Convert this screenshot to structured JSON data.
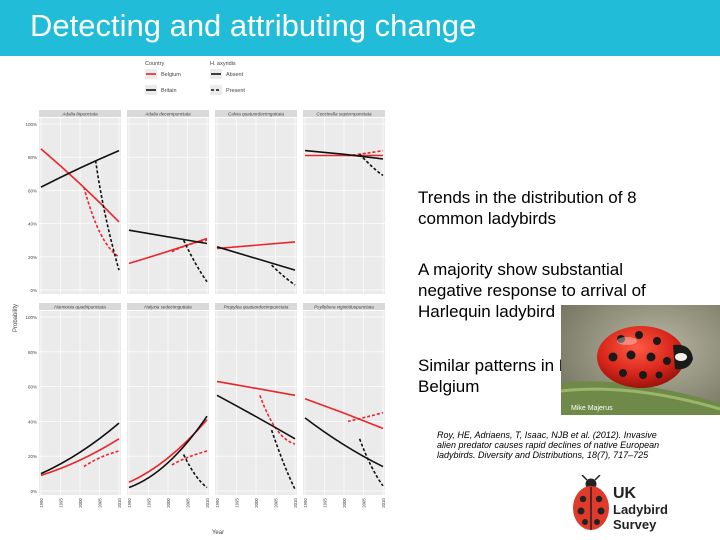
{
  "slide": {
    "title": "Detecting and attributing change",
    "bullets": [
      {
        "lines": [
          "Trends in the distribution of 8",
          "common ladybirds"
        ]
      },
      {
        "lines": [
          "A majority show substantial",
          "negative response to arrival of",
          "Harlequin ladybird"
        ]
      },
      {
        "lines": [
          "Similar patterns in Britain and",
          "Belgium"
        ]
      }
    ],
    "photo_credit": "Mike Majerus",
    "citation": "Roy, HE, Adriaens, T, Isaac, NJB et al. (2012). Invasive alien predator causes rapid declines of native European ladybirds. Diversity and Distributions, 18(7), 717–725",
    "logo": {
      "line1": "UK",
      "line2": "Ladybird Survey"
    }
  },
  "colors": {
    "title_bar": "#20bcd8",
    "belgium": "#e8262b",
    "britain": "#111111",
    "panel_bg": "#ebebeb",
    "grid": "#ffffff"
  },
  "chart_data": {
    "type": "line",
    "legend": {
      "country_title": "Country",
      "harmonia_title": "H. axyridis",
      "entries": [
        "Belgium",
        "Britain",
        "Absent",
        "Present"
      ]
    },
    "ylabel": "Probability",
    "xlabel": "Year",
    "y_ticks": [
      "0%",
      "20%",
      "40%",
      "60%",
      "80%",
      "100%"
    ],
    "x_ticks": [
      "1990",
      "1995",
      "2000",
      "2005",
      "2010"
    ],
    "x_range": [
      1990,
      2010
    ],
    "y_range": [
      0,
      1
    ],
    "panels": [
      {
        "name": "Adalia bipunctata",
        "series": [
          {
            "name": "Belgium Absent",
            "country": "Belgium",
            "status": "Absent",
            "x": [
              1990,
              2000,
              2010
            ],
            "y": [
              0.85,
              0.65,
              0.41
            ]
          },
          {
            "name": "Belgium Present",
            "country": "Belgium",
            "status": "Present",
            "x": [
              2001,
              2005,
              2010
            ],
            "y": [
              0.62,
              0.27,
              0.2
            ]
          },
          {
            "name": "Britain Absent",
            "country": "Britain",
            "status": "Absent",
            "x": [
              1990,
              2000,
              2010
            ],
            "y": [
              0.62,
              0.74,
              0.84
            ]
          },
          {
            "name": "Britain Present",
            "country": "Britain",
            "status": "Present",
            "x": [
              2004,
              2006,
              2010
            ],
            "y": [
              0.78,
              0.45,
              0.12
            ]
          }
        ]
      },
      {
        "name": "Adalia decempunctata",
        "series": [
          {
            "name": "Belgium Absent",
            "country": "Belgium",
            "status": "Absent",
            "x": [
              1990,
              2000,
              2010
            ],
            "y": [
              0.16,
              0.23,
              0.31
            ]
          },
          {
            "name": "Belgium Present",
            "country": "Belgium",
            "status": "Present",
            "x": [
              2001,
              2005,
              2010
            ],
            "y": [
              0.23,
              0.28,
              0.3
            ]
          },
          {
            "name": "Britain Absent",
            "country": "Britain",
            "status": "Absent",
            "x": [
              1990,
              2000,
              2010
            ],
            "y": [
              0.36,
              0.32,
              0.28
            ]
          },
          {
            "name": "Britain Present",
            "country": "Britain",
            "status": "Present",
            "x": [
              2004,
              2007,
              2010
            ],
            "y": [
              0.3,
              0.15,
              0.05
            ]
          }
        ]
      },
      {
        "name": "Calvia quatuordecimguttata",
        "series": [
          {
            "name": "Belgium Absent",
            "country": "Belgium",
            "status": "Absent",
            "x": [
              1990,
              2000,
              2010
            ],
            "y": [
              0.25,
              0.27,
              0.29
            ]
          },
          {
            "name": "Britain Absent",
            "country": "Britain",
            "status": "Absent",
            "x": [
              1990,
              2000,
              2010
            ],
            "y": [
              0.26,
              0.19,
              0.12
            ]
          },
          {
            "name": "Britain Present",
            "country": "Britain",
            "status": "Present",
            "x": [
              2004,
              2007,
              2010
            ],
            "y": [
              0.15,
              0.08,
              0.03
            ]
          }
        ]
      },
      {
        "name": "Coccinella septempunctata",
        "series": [
          {
            "name": "Belgium Absent",
            "country": "Belgium",
            "status": "Absent",
            "x": [
              1990,
              2000,
              2010
            ],
            "y": [
              0.81,
              0.81,
              0.81
            ]
          },
          {
            "name": "Belgium Present",
            "country": "Belgium",
            "status": "Present",
            "x": [
              2001,
              2005,
              2010
            ],
            "y": [
              0.81,
              0.82,
              0.84
            ]
          },
          {
            "name": "Britain Absent",
            "country": "Britain",
            "status": "Absent",
            "x": [
              1990,
              2000,
              2010
            ],
            "y": [
              0.84,
              0.82,
              0.79
            ]
          },
          {
            "name": "Britain Present",
            "country": "Britain",
            "status": "Present",
            "x": [
              2004,
              2007,
              2010
            ],
            "y": [
              0.82,
              0.74,
              0.69
            ]
          }
        ]
      },
      {
        "name": "Harmonia quadripunctata",
        "series": [
          {
            "name": "Belgium Absent",
            "country": "Belgium",
            "status": "Absent",
            "x": [
              1990,
              2000,
              2010
            ],
            "y": [
              0.09,
              0.16,
              0.3
            ]
          },
          {
            "name": "Belgium Present",
            "country": "Belgium",
            "status": "Present",
            "x": [
              2001,
              2005,
              2010
            ],
            "y": [
              0.14,
              0.2,
              0.23
            ]
          },
          {
            "name": "Britain Absent",
            "country": "Britain",
            "status": "Absent",
            "x": [
              1990,
              2000,
              2010
            ],
            "y": [
              0.1,
              0.2,
              0.39
            ]
          }
        ]
      },
      {
        "name": "Halyzia sedecimguttata",
        "series": [
          {
            "name": "Belgium Absent",
            "country": "Belgium",
            "status": "Absent",
            "x": [
              1990,
              2000,
              2010
            ],
            "y": [
              0.05,
              0.15,
              0.41
            ]
          },
          {
            "name": "Belgium Present",
            "country": "Belgium",
            "status": "Present",
            "x": [
              2001,
              2005,
              2010
            ],
            "y": [
              0.15,
              0.2,
              0.23
            ]
          },
          {
            "name": "Britain Absent",
            "country": "Britain",
            "status": "Absent",
            "x": [
              1990,
              2000,
              2010
            ],
            "y": [
              0.02,
              0.1,
              0.43
            ]
          },
          {
            "name": "Britain Present",
            "country": "Britain",
            "status": "Present",
            "x": [
              2004,
              2007,
              2010
            ],
            "y": [
              0.21,
              0.07,
              0.02
            ]
          }
        ]
      },
      {
        "name": "Propylea quatuordecimpunctata",
        "series": [
          {
            "name": "Belgium Absent",
            "country": "Belgium",
            "status": "Absent",
            "x": [
              1990,
              2000,
              2010
            ],
            "y": [
              0.63,
              0.59,
              0.55
            ]
          },
          {
            "name": "Belgium Present",
            "country": "Belgium",
            "status": "Present",
            "x": [
              2001,
              2005,
              2010
            ],
            "y": [
              0.55,
              0.3,
              0.27
            ]
          },
          {
            "name": "Britain Absent",
            "country": "Britain",
            "status": "Absent",
            "x": [
              1990,
              2000,
              2010
            ],
            "y": [
              0.55,
              0.43,
              0.3
            ]
          },
          {
            "name": "Britain Present",
            "country": "Britain",
            "status": "Present",
            "x": [
              2004,
              2007,
              2010
            ],
            "y": [
              0.35,
              0.15,
              0.01
            ]
          }
        ]
      },
      {
        "name": "Psyllobora vigintiduopunctata",
        "series": [
          {
            "name": "Belgium Absent",
            "country": "Belgium",
            "status": "Absent",
            "x": [
              1990,
              2000,
              2010
            ],
            "y": [
              0.53,
              0.45,
              0.36
            ]
          },
          {
            "name": "Belgium Present",
            "country": "Belgium",
            "status": "Present",
            "x": [
              2001,
              2005,
              2010
            ],
            "y": [
              0.4,
              0.42,
              0.45
            ]
          },
          {
            "name": "Britain Absent",
            "country": "Britain",
            "status": "Absent",
            "x": [
              1990,
              2000,
              2010
            ],
            "y": [
              0.42,
              0.25,
              0.14
            ]
          },
          {
            "name": "Britain Present",
            "country": "Britain",
            "status": "Present",
            "x": [
              2004,
              2007,
              2010
            ],
            "y": [
              0.3,
              0.12,
              0.03
            ]
          }
        ]
      }
    ]
  }
}
